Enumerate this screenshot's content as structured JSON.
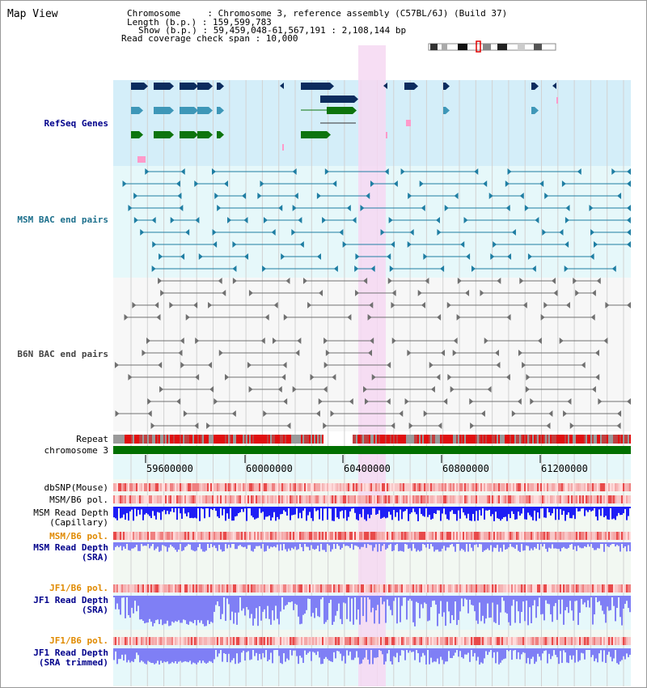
{
  "title": "Map View",
  "header": {
    "line1": "Chromosome     : Chromosome 3, reference assembly (C57BL/6J) (Build 37)",
    "line2": "Length (b.p.) : 159,599,783",
    "line3": "Show (b.p.) : 59,459,048-61,567,191 : 2,108,144 bp",
    "line4": "Read coverage check span : 10,000"
  },
  "tracks": {
    "refseq": "RefSeq Genes",
    "msm_bac": "MSM BAC end pairs",
    "b6n_bac": "B6N BAC end pairs",
    "repeat": "Repeat",
    "chromosome": "chromosome 3",
    "dbsnp": "dbSNP(Mouse)",
    "msm_b6_pol": "MSM/B6 pol.",
    "msm_depth_cap_1": "MSM Read Depth",
    "msm_depth_cap_2": "(Capillary)",
    "msm_b6_pol2": "MSM/B6 pol.",
    "msm_depth_sra_1": "MSM Read Depth",
    "msm_depth_sra_2": "(SRA)",
    "jf1_b6_pol": "JF1/B6 pol.",
    "jf1_depth_sra_1": "JF1 Read Depth",
    "jf1_depth_sra_2": "(SRA)",
    "jf1_b6_pol2": "JF1/B6 pol.",
    "jf1_depth_trim_1": "JF1 Read Depth",
    "jf1_depth_trim_2": "(SRA trimmed)"
  },
  "axis": {
    "ticks": [
      "59600000",
      "60000000",
      "60400000",
      "60800000",
      "61200000"
    ]
  },
  "colors": {
    "refseq_bg": "#d4eef9",
    "teal_bg": "#e6f8fa",
    "highlight": "#f6d8f2",
    "gene_navy": "#0c2c5e",
    "gene_teal": "#3e97b8",
    "gene_green": "#0d740d",
    "chromosome_bar": "#007000",
    "depth_blue": "#1e1ef5",
    "depth_light": "#7f7ff5",
    "bac_teal": "#1f7ea3",
    "bac_gray": "#707070"
  }
}
